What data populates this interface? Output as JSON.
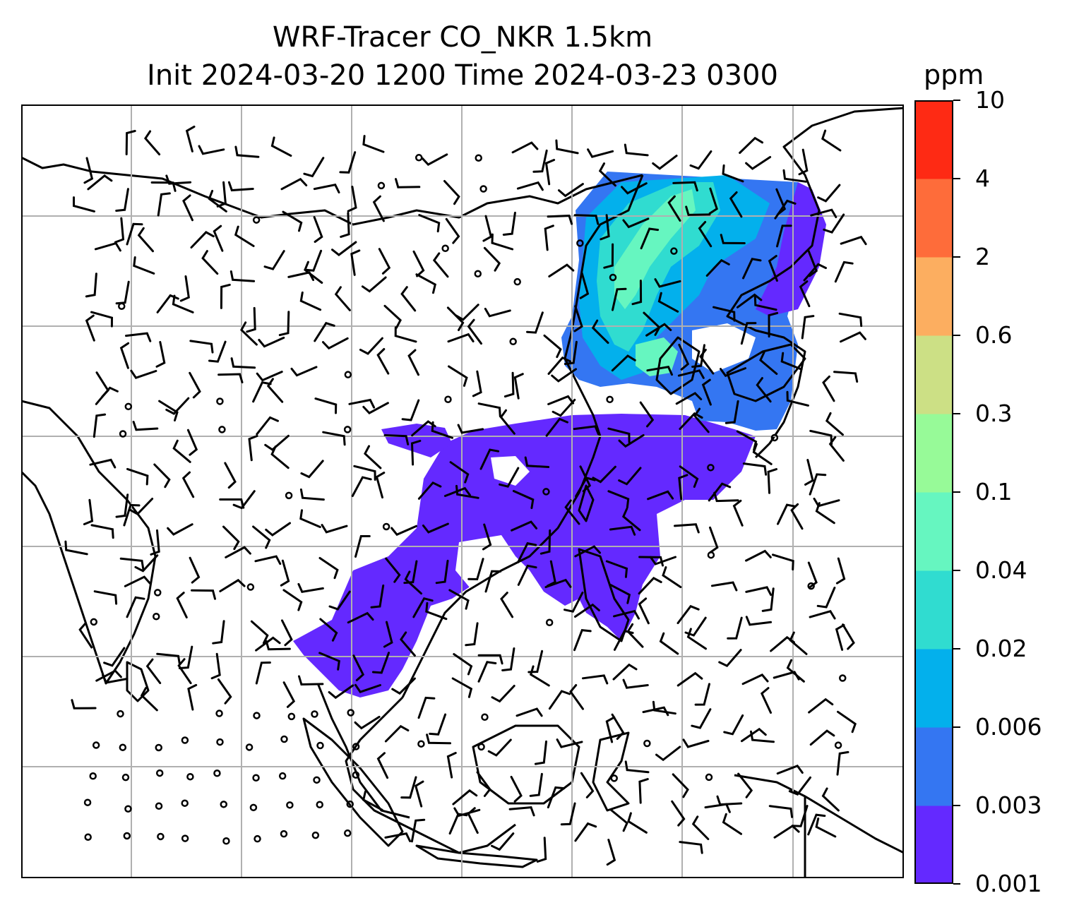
{
  "title": {
    "line1": "WRF-Tracer CO_NKR 1.5km",
    "line2": "Init 2024-03-20 1200 Time 2024-03-23 0300"
  },
  "colorbar": {
    "unit": "ppm",
    "levels": [
      "0.001",
      "0.003",
      "0.006",
      "0.02",
      "0.04",
      "0.1",
      "0.3",
      "0.6",
      "2",
      "4",
      "10"
    ],
    "colors": [
      "#6429ff",
      "#3476f2",
      "#03b0ec",
      "#30dcd0",
      "#66f6c0",
      "#97fa98",
      "#cce085",
      "#fcae60",
      "#fe6c3a",
      "#fe2a14"
    ]
  },
  "map": {
    "gridlines": "on",
    "coastlines": "black",
    "wind_barbs": "black",
    "calm_marker": "open-circle"
  }
}
